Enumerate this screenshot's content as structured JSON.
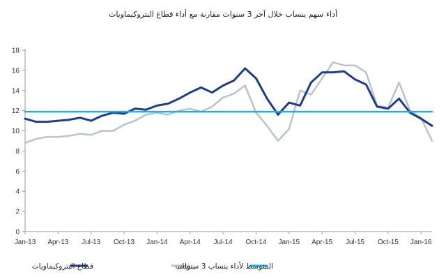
{
  "chart_data": {
    "type": "line",
    "title": "أداء سهم ينساب خلال آخر 3 سنوات مقارنة مع أداء قطاع البتروكيماويات",
    "xlabel": "",
    "ylabel": "",
    "ylim": [
      0,
      18
    ],
    "y_ticks": [
      "0",
      "2",
      "4",
      "6",
      "8",
      "10",
      "12",
      "14",
      "16",
      "18"
    ],
    "x_ticks": [
      "Jan-13",
      "Apr-13",
      "Jul-13",
      "Oct-13",
      "Jan-14",
      "Apr-14",
      "Jul-14",
      "Oct-14",
      "Jan-15",
      "Apr-15",
      "Jul-15",
      "Oct-15",
      "Jan-16"
    ],
    "x": [
      "Jan-13",
      "Feb-13",
      "Mar-13",
      "Apr-13",
      "May-13",
      "Jun-13",
      "Jul-13",
      "Aug-13",
      "Sep-13",
      "Oct-13",
      "Nov-13",
      "Dec-13",
      "Jan-14",
      "Feb-14",
      "Mar-14",
      "Apr-14",
      "May-14",
      "Jun-14",
      "Jul-14",
      "Aug-14",
      "Sep-14",
      "Oct-14",
      "Nov-14",
      "Dec-14",
      "Jan-15",
      "Feb-15",
      "Mar-15",
      "Apr-15",
      "May-15",
      "Jun-15",
      "Jul-15",
      "Aug-15",
      "Sep-15",
      "Oct-15",
      "Nov-15",
      "Dec-15",
      "Jan-16",
      "Feb-16"
    ],
    "grid": false,
    "legend_position": "bottom",
    "series": [
      {
        "name": "قطاع البتروكيماويات",
        "color": "#1f3c88",
        "values": [
          11.2,
          10.9,
          10.9,
          11.0,
          11.1,
          11.3,
          11.0,
          11.5,
          11.8,
          11.7,
          12.2,
          12.1,
          12.5,
          12.7,
          13.2,
          13.8,
          14.3,
          13.8,
          14.5,
          15.0,
          16.2,
          15.2,
          13.2,
          11.6,
          12.8,
          12.5,
          14.8,
          15.8,
          15.8,
          15.9,
          15.1,
          14.6,
          12.4,
          12.2,
          13.2,
          11.8,
          11.2,
          10.5
        ]
      },
      {
        "name": "ينساب",
        "color": "#b8c3cb",
        "values": [
          8.8,
          9.2,
          9.4,
          9.4,
          9.5,
          9.7,
          9.6,
          10.0,
          10.0,
          10.6,
          11.0,
          11.6,
          11.8,
          11.6,
          12.0,
          12.2,
          11.9,
          12.4,
          13.3,
          13.7,
          14.5,
          11.8,
          10.5,
          9.0,
          10.2,
          14.0,
          13.6,
          15.2,
          16.8,
          16.5,
          16.5,
          15.8,
          12.5,
          12.3,
          14.8,
          12.0,
          11.3,
          9.0
        ]
      },
      {
        "name": "المتوسط لأداء ينساب 3 سنوات",
        "color": "#22aedc",
        "values": [
          11.9,
          11.9,
          11.9,
          11.9,
          11.9,
          11.9,
          11.9,
          11.9,
          11.9,
          11.9,
          11.9,
          11.9,
          11.9,
          11.9,
          11.9,
          11.9,
          11.9,
          11.9,
          11.9,
          11.9,
          11.9,
          11.9,
          11.9,
          11.9,
          11.9,
          11.9,
          11.9,
          11.9,
          11.9,
          11.9,
          11.9,
          11.9,
          11.9,
          11.9,
          11.9,
          11.9,
          11.9,
          11.9
        ]
      }
    ]
  }
}
